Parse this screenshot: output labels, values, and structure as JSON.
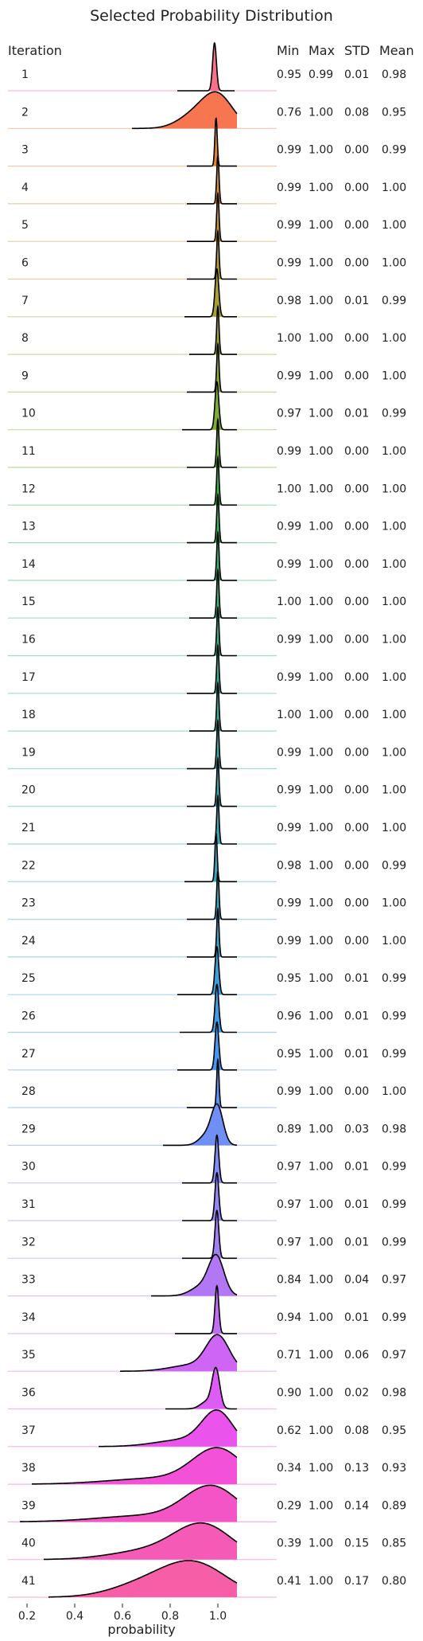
{
  "chart_data": {
    "type": "ridgeline",
    "title": "Selected Probability Distribution",
    "xlabel": "probability",
    "xlim": [
      0.15,
      1.2
    ],
    "xticks": [
      "0.2",
      "0.4",
      "0.6",
      "0.8",
      "1.0"
    ],
    "xtick_values": [
      0.2,
      0.4,
      0.6,
      0.8,
      1.0
    ],
    "columns": [
      "Iteration",
      "Min",
      "Max",
      "STD",
      "Mean"
    ],
    "rows": [
      {
        "iteration": "1",
        "min": "0.95",
        "max": "0.99",
        "std": "0.01",
        "mean": "0.98",
        "color": "#f77189"
      },
      {
        "iteration": "2",
        "min": "0.76",
        "max": "1.00",
        "std": "0.08",
        "mean": "0.95",
        "color": "#f7754f"
      },
      {
        "iteration": "3",
        "min": "0.99",
        "max": "1.00",
        "std": "0.00",
        "mean": "0.99",
        "color": "#e48431"
      },
      {
        "iteration": "4",
        "min": "0.99",
        "max": "1.00",
        "std": "0.00",
        "mean": "1.00",
        "color": "#d28e32"
      },
      {
        "iteration": "5",
        "min": "0.99",
        "max": "1.00",
        "std": "0.00",
        "mean": "1.00",
        "color": "#c39532"
      },
      {
        "iteration": "6",
        "min": "0.99",
        "max": "1.00",
        "std": "0.00",
        "mean": "1.00",
        "color": "#b59b32"
      },
      {
        "iteration": "7",
        "min": "0.98",
        "max": "1.00",
        "std": "0.01",
        "mean": "0.99",
        "color": "#a9a032"
      },
      {
        "iteration": "8",
        "min": "1.00",
        "max": "1.00",
        "std": "0.00",
        "mean": "1.00",
        "color": "#9ca432"
      },
      {
        "iteration": "9",
        "min": "0.99",
        "max": "1.00",
        "std": "0.00",
        "mean": "1.00",
        "color": "#8ea832"
      },
      {
        "iteration": "10",
        "min": "0.97",
        "max": "1.00",
        "std": "0.01",
        "mean": "0.99",
        "color": "#7cac31"
      },
      {
        "iteration": "11",
        "min": "0.99",
        "max": "1.00",
        "std": "0.00",
        "mean": "1.00",
        "color": "#62b031"
      },
      {
        "iteration": "12",
        "min": "1.00",
        "max": "1.00",
        "std": "0.00",
        "mean": "1.00",
        "color": "#34b543"
      },
      {
        "iteration": "13",
        "min": "0.99",
        "max": "1.00",
        "std": "0.00",
        "mean": "1.00",
        "color": "#34b25e"
      },
      {
        "iteration": "14",
        "min": "0.99",
        "max": "1.00",
        "std": "0.00",
        "mean": "1.00",
        "color": "#35b06f"
      },
      {
        "iteration": "15",
        "min": "1.00",
        "max": "1.00",
        "std": "0.00",
        "mean": "1.00",
        "color": "#36ae7c"
      },
      {
        "iteration": "16",
        "min": "0.99",
        "max": "1.00",
        "std": "0.00",
        "mean": "1.00",
        "color": "#36ad88"
      },
      {
        "iteration": "17",
        "min": "0.99",
        "max": "1.00",
        "std": "0.00",
        "mean": "1.00",
        "color": "#37ab92"
      },
      {
        "iteration": "18",
        "min": "1.00",
        "max": "1.00",
        "std": "0.00",
        "mean": "1.00",
        "color": "#37aa9b"
      },
      {
        "iteration": "19",
        "min": "0.99",
        "max": "1.00",
        "std": "0.00",
        "mean": "1.00",
        "color": "#38a8a3"
      },
      {
        "iteration": "20",
        "min": "0.99",
        "max": "1.00",
        "std": "0.00",
        "mean": "1.00",
        "color": "#38a7ab"
      },
      {
        "iteration": "21",
        "min": "0.99",
        "max": "1.00",
        "std": "0.00",
        "mean": "1.00",
        "color": "#39a6b3"
      },
      {
        "iteration": "22",
        "min": "0.98",
        "max": "1.00",
        "std": "0.00",
        "mean": "0.99",
        "color": "#3aa4bb"
      },
      {
        "iteration": "23",
        "min": "0.99",
        "max": "1.00",
        "std": "0.00",
        "mean": "1.00",
        "color": "#3ba3c4"
      },
      {
        "iteration": "24",
        "min": "0.99",
        "max": "1.00",
        "std": "0.00",
        "mean": "1.00",
        "color": "#3ca1cd"
      },
      {
        "iteration": "25",
        "min": "0.95",
        "max": "1.00",
        "std": "0.01",
        "mean": "0.99",
        "color": "#3d9fd8"
      },
      {
        "iteration": "26",
        "min": "0.96",
        "max": "1.00",
        "std": "0.01",
        "mean": "0.99",
        "color": "#3e9be4"
      },
      {
        "iteration": "27",
        "min": "0.95",
        "max": "1.00",
        "std": "0.01",
        "mean": "0.99",
        "color": "#4497f2"
      },
      {
        "iteration": "28",
        "min": "0.99",
        "max": "1.00",
        "std": "0.00",
        "mean": "1.00",
        "color": "#5b93f4"
      },
      {
        "iteration": "29",
        "min": "0.89",
        "max": "1.00",
        "std": "0.03",
        "mean": "0.98",
        "color": "#6f8ff4"
      },
      {
        "iteration": "30",
        "min": "0.97",
        "max": "1.00",
        "std": "0.01",
        "mean": "0.99",
        "color": "#828bf4"
      },
      {
        "iteration": "31",
        "min": "0.97",
        "max": "1.00",
        "std": "0.01",
        "mean": "0.99",
        "color": "#9385f4"
      },
      {
        "iteration": "32",
        "min": "0.97",
        "max": "1.00",
        "std": "0.01",
        "mean": "0.99",
        "color": "#a37ff4"
      },
      {
        "iteration": "33",
        "min": "0.84",
        "max": "1.00",
        "std": "0.04",
        "mean": "0.97",
        "color": "#b277f4"
      },
      {
        "iteration": "34",
        "min": "0.94",
        "max": "1.00",
        "std": "0.01",
        "mean": "0.99",
        "color": "#c16ef4"
      },
      {
        "iteration": "35",
        "min": "0.71",
        "max": "1.00",
        "std": "0.06",
        "mean": "0.97",
        "color": "#cf65f4"
      },
      {
        "iteration": "36",
        "min": "0.90",
        "max": "1.00",
        "std": "0.02",
        "mean": "0.98",
        "color": "#dd5cf4"
      },
      {
        "iteration": "37",
        "min": "0.62",
        "max": "1.00",
        "std": "0.08",
        "mean": "0.95",
        "color": "#ea53ec"
      },
      {
        "iteration": "38",
        "min": "0.34",
        "max": "1.00",
        "std": "0.13",
        "mean": "0.93",
        "color": "#f251d8"
      },
      {
        "iteration": "39",
        "min": "0.29",
        "max": "1.00",
        "std": "0.14",
        "mean": "0.89",
        "color": "#f455c6"
      },
      {
        "iteration": "40",
        "min": "0.39",
        "max": "1.00",
        "std": "0.15",
        "mean": "0.85",
        "color": "#f65ab7"
      },
      {
        "iteration": "41",
        "min": "0.41",
        "max": "1.00",
        "std": "0.17",
        "mean": "0.80",
        "color": "#f65fa8"
      }
    ]
  }
}
